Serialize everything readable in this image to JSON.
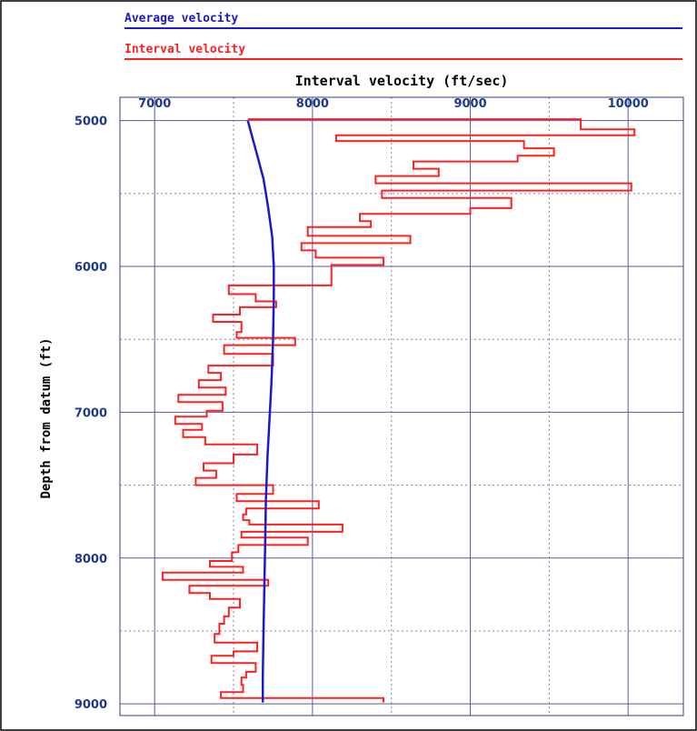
{
  "chart_data": {
    "type": "line",
    "title": "",
    "xlabel": "Interval velocity (ft/sec)",
    "ylabel": "Depth from datum (ft)",
    "xlim": [
      6780,
      10350
    ],
    "ylim": [
      4840,
      9080
    ],
    "x_ticks": [
      "7000",
      "8000",
      "9000",
      "10000"
    ],
    "y_ticks": [
      "5000",
      "6000",
      "7000",
      "8000",
      "9000"
    ],
    "x_tick_values": [
      7000,
      8000,
      9000,
      10000
    ],
    "y_tick_values": [
      5000,
      6000,
      7000,
      8000,
      9000
    ],
    "x_gridlines": [
      7000,
      7500,
      8000,
      8500,
      9000,
      9500,
      10000
    ],
    "y_gridlines": [
      5000,
      5500,
      6000,
      6500,
      7000,
      7500,
      8000,
      8500,
      9000
    ],
    "grid": true,
    "legend_position": "top",
    "series": [
      {
        "name": "Average velocity",
        "color": "#1a1acc",
        "style": "line",
        "points": [
          [
            7590,
            5000
          ],
          [
            7640,
            5200
          ],
          [
            7690,
            5400
          ],
          [
            7720,
            5600
          ],
          [
            7745,
            5800
          ],
          [
            7755,
            6000
          ],
          [
            7755,
            6200
          ],
          [
            7750,
            6500
          ],
          [
            7740,
            6800
          ],
          [
            7730,
            7000
          ],
          [
            7715,
            7300
          ],
          [
            7705,
            7600
          ],
          [
            7700,
            7900
          ],
          [
            7695,
            8200
          ],
          [
            7690,
            8500
          ],
          [
            7685,
            8800
          ],
          [
            7685,
            8990
          ]
        ]
      },
      {
        "name": "Interval velocity",
        "color": "#ff2020",
        "style": "step",
        "points": [
          [
            7590,
            4990
          ],
          [
            9700,
            4990
          ],
          [
            9700,
            5060
          ],
          [
            10040,
            5060
          ],
          [
            10040,
            5100
          ],
          [
            8150,
            5100
          ],
          [
            8150,
            5140
          ],
          [
            9340,
            5140
          ],
          [
            9340,
            5190
          ],
          [
            9530,
            5190
          ],
          [
            9530,
            5240
          ],
          [
            9300,
            5240
          ],
          [
            9300,
            5280
          ],
          [
            8640,
            5280
          ],
          [
            8640,
            5330
          ],
          [
            8800,
            5330
          ],
          [
            8800,
            5380
          ],
          [
            8400,
            5380
          ],
          [
            8400,
            5430
          ],
          [
            10020,
            5430
          ],
          [
            10020,
            5480
          ],
          [
            8440,
            5480
          ],
          [
            8440,
            5530
          ],
          [
            9260,
            5530
          ],
          [
            9260,
            5600
          ],
          [
            9000,
            5600
          ],
          [
            9000,
            5640
          ],
          [
            8300,
            5640
          ],
          [
            8300,
            5690
          ],
          [
            8370,
            5690
          ],
          [
            8370,
            5730
          ],
          [
            7970,
            5730
          ],
          [
            7970,
            5790
          ],
          [
            8620,
            5790
          ],
          [
            8620,
            5840
          ],
          [
            7930,
            5840
          ],
          [
            7930,
            5890
          ],
          [
            8020,
            5890
          ],
          [
            8020,
            5940
          ],
          [
            8450,
            5940
          ],
          [
            8450,
            5990
          ],
          [
            8120,
            5990
          ],
          [
            8120,
            6130
          ],
          [
            7470,
            6130
          ],
          [
            7470,
            6190
          ],
          [
            7640,
            6190
          ],
          [
            7640,
            6240
          ],
          [
            7770,
            6240
          ],
          [
            7770,
            6280
          ],
          [
            7540,
            6280
          ],
          [
            7540,
            6330
          ],
          [
            7370,
            6330
          ],
          [
            7370,
            6380
          ],
          [
            7550,
            6380
          ],
          [
            7550,
            6450
          ],
          [
            7520,
            6450
          ],
          [
            7520,
            6490
          ],
          [
            7890,
            6490
          ],
          [
            7890,
            6540
          ],
          [
            7440,
            6540
          ],
          [
            7440,
            6600
          ],
          [
            7750,
            6600
          ],
          [
            7750,
            6680
          ],
          [
            7340,
            6680
          ],
          [
            7340,
            6730
          ],
          [
            7420,
            6730
          ],
          [
            7420,
            6780
          ],
          [
            7280,
            6780
          ],
          [
            7280,
            6830
          ],
          [
            7450,
            6830
          ],
          [
            7450,
            6880
          ],
          [
            7150,
            6880
          ],
          [
            7150,
            6930
          ],
          [
            7430,
            6930
          ],
          [
            7430,
            6990
          ],
          [
            7330,
            6990
          ],
          [
            7330,
            7030
          ],
          [
            7130,
            7030
          ],
          [
            7130,
            7080
          ],
          [
            7300,
            7080
          ],
          [
            7300,
            7120
          ],
          [
            7180,
            7120
          ],
          [
            7180,
            7170
          ],
          [
            7320,
            7170
          ],
          [
            7320,
            7220
          ],
          [
            7650,
            7220
          ],
          [
            7650,
            7290
          ],
          [
            7500,
            7290
          ],
          [
            7500,
            7350
          ],
          [
            7310,
            7350
          ],
          [
            7310,
            7400
          ],
          [
            7390,
            7400
          ],
          [
            7390,
            7450
          ],
          [
            7260,
            7450
          ],
          [
            7260,
            7500
          ],
          [
            7750,
            7500
          ],
          [
            7750,
            7560
          ],
          [
            7520,
            7560
          ],
          [
            7520,
            7610
          ],
          [
            8040,
            7610
          ],
          [
            8040,
            7660
          ],
          [
            7580,
            7660
          ],
          [
            7580,
            7700
          ],
          [
            7560,
            7700
          ],
          [
            7560,
            7740
          ],
          [
            7600,
            7740
          ],
          [
            7600,
            7770
          ],
          [
            8190,
            7770
          ],
          [
            8190,
            7820
          ],
          [
            7550,
            7820
          ],
          [
            7550,
            7860
          ],
          [
            7970,
            7860
          ],
          [
            7970,
            7910
          ],
          [
            7530,
            7910
          ],
          [
            7530,
            7960
          ],
          [
            7490,
            7960
          ],
          [
            7490,
            8020
          ],
          [
            7350,
            8020
          ],
          [
            7350,
            8060
          ],
          [
            7560,
            8060
          ],
          [
            7560,
            8100
          ],
          [
            7050,
            8100
          ],
          [
            7050,
            8150
          ],
          [
            7720,
            8150
          ],
          [
            7720,
            8190
          ],
          [
            7220,
            8190
          ],
          [
            7220,
            8240
          ],
          [
            7350,
            8240
          ],
          [
            7350,
            8280
          ],
          [
            7540,
            8280
          ],
          [
            7540,
            8340
          ],
          [
            7470,
            8340
          ],
          [
            7470,
            8400
          ],
          [
            7440,
            8400
          ],
          [
            7440,
            8450
          ],
          [
            7410,
            8450
          ],
          [
            7410,
            8520
          ],
          [
            7380,
            8520
          ],
          [
            7380,
            8580
          ],
          [
            7650,
            8580
          ],
          [
            7650,
            8640
          ],
          [
            7500,
            8640
          ],
          [
            7500,
            8670
          ],
          [
            7360,
            8670
          ],
          [
            7360,
            8720
          ],
          [
            7640,
            8720
          ],
          [
            7640,
            8780
          ],
          [
            7580,
            8780
          ],
          [
            7580,
            8820
          ],
          [
            7550,
            8820
          ],
          [
            7550,
            8870
          ],
          [
            7560,
            8870
          ],
          [
            7560,
            8920
          ],
          [
            7420,
            8920
          ],
          [
            7420,
            8960
          ],
          [
            8450,
            8960
          ],
          [
            8450,
            8990
          ]
        ]
      }
    ]
  }
}
